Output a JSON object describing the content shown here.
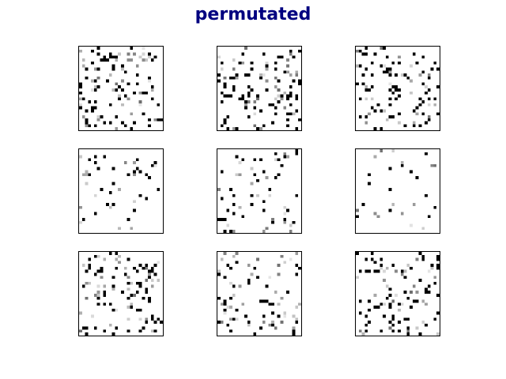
{
  "figure": {
    "title": "permutated",
    "title_color": "#000080"
  },
  "chart_data": {
    "type": "heatmap",
    "title": "permutated",
    "layout": {
      "rows": 3,
      "cols": 3
    },
    "colormap": "gray_r",
    "value_range": [
      0,
      1
    ],
    "axes_visible": false,
    "grid": false,
    "panels": [
      {
        "size": [
          28,
          28
        ],
        "density": 0.14,
        "gray_fraction": 0.35
      },
      {
        "size": [
          28,
          28
        ],
        "density": 0.15,
        "gray_fraction": 0.35
      },
      {
        "size": [
          28,
          28
        ],
        "density": 0.12,
        "gray_fraction": 0.3
      },
      {
        "size": [
          28,
          28
        ],
        "density": 0.06,
        "gray_fraction": 0.3
      },
      {
        "size": [
          28,
          28
        ],
        "density": 0.07,
        "gray_fraction": 0.4
      },
      {
        "size": [
          28,
          28
        ],
        "density": 0.035,
        "gray_fraction": 0.45
      },
      {
        "size": [
          28,
          28
        ],
        "density": 0.13,
        "gray_fraction": 0.35
      },
      {
        "size": [
          28,
          28
        ],
        "density": 0.1,
        "gray_fraction": 0.4
      },
      {
        "size": [
          28,
          28
        ],
        "density": 0.15,
        "gray_fraction": 0.3
      }
    ]
  }
}
